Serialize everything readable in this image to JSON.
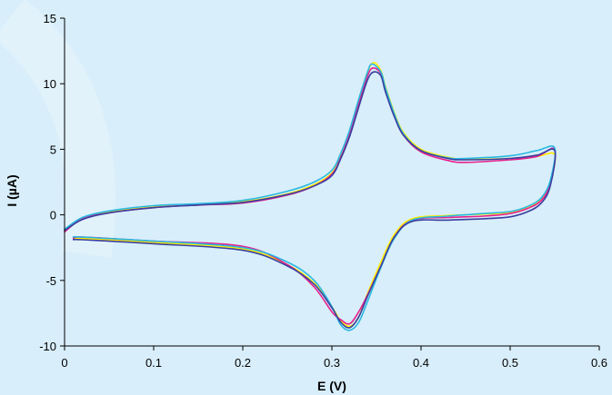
{
  "chart_data": {
    "type": "line",
    "title": "",
    "xlabel": "E (V)",
    "ylabel": "I (µA)",
    "xlim": [
      0,
      0.6
    ],
    "ylim": [
      -10,
      15
    ],
    "x_ticks": [
      0,
      0.1,
      0.2,
      0.3,
      0.4,
      0.5,
      0.6
    ],
    "x_tick_labels": [
      "0",
      "0.1",
      "0.2",
      "0.3",
      "0.4",
      "0.5",
      "0.6"
    ],
    "y_ticks": [
      -10,
      -5,
      0,
      5,
      10,
      15
    ],
    "y_tick_labels": [
      "-10",
      "-5",
      "0",
      "5",
      "10",
      "15"
    ],
    "grid": false,
    "legend": "none",
    "series": [
      {
        "color": "#ffee00",
        "forward": [
          [
            0.0,
            -1.2
          ],
          [
            0.02,
            -0.3
          ],
          [
            0.05,
            0.2
          ],
          [
            0.1,
            0.6
          ],
          [
            0.15,
            0.8
          ],
          [
            0.2,
            1.0
          ],
          [
            0.25,
            1.6
          ],
          [
            0.28,
            2.3
          ],
          [
            0.3,
            3.2
          ],
          [
            0.31,
            4.5
          ],
          [
            0.32,
            6.3
          ],
          [
            0.33,
            8.7
          ],
          [
            0.34,
            10.9
          ],
          [
            0.347,
            11.6
          ],
          [
            0.355,
            11.0
          ],
          [
            0.36,
            9.8
          ],
          [
            0.37,
            7.8
          ],
          [
            0.38,
            6.3
          ],
          [
            0.4,
            5.0
          ],
          [
            0.43,
            4.4
          ],
          [
            0.45,
            4.25
          ],
          [
            0.5,
            4.3
          ],
          [
            0.53,
            4.45
          ],
          [
            0.55,
            4.6
          ]
        ],
        "reverse": [
          [
            0.55,
            4.6
          ],
          [
            0.545,
            2.5
          ],
          [
            0.535,
            1.2
          ],
          [
            0.52,
            0.6
          ],
          [
            0.5,
            0.2
          ],
          [
            0.47,
            0.05
          ],
          [
            0.43,
            -0.05
          ],
          [
            0.39,
            -0.3
          ],
          [
            0.37,
            -1.5
          ],
          [
            0.355,
            -3.6
          ],
          [
            0.34,
            -6.0
          ],
          [
            0.33,
            -7.8
          ],
          [
            0.32,
            -8.5
          ],
          [
            0.31,
            -8.1
          ],
          [
            0.3,
            -7.0
          ],
          [
            0.28,
            -5.2
          ],
          [
            0.25,
            -3.8
          ],
          [
            0.2,
            -2.6
          ],
          [
            0.1,
            -2.1
          ],
          [
            0.02,
            -1.8
          ],
          [
            0.01,
            -1.8
          ]
        ]
      },
      {
        "color": "#e8208c",
        "forward": [
          [
            0.0,
            -1.3
          ],
          [
            0.02,
            -0.3
          ],
          [
            0.05,
            0.15
          ],
          [
            0.1,
            0.55
          ],
          [
            0.15,
            0.75
          ],
          [
            0.2,
            0.9
          ],
          [
            0.25,
            1.5
          ],
          [
            0.28,
            2.2
          ],
          [
            0.3,
            3.1
          ],
          [
            0.31,
            4.4
          ],
          [
            0.32,
            6.2
          ],
          [
            0.33,
            8.5
          ],
          [
            0.34,
            10.6
          ],
          [
            0.346,
            11.2
          ],
          [
            0.355,
            10.8
          ],
          [
            0.36,
            9.6
          ],
          [
            0.37,
            7.6
          ],
          [
            0.38,
            6.1
          ],
          [
            0.4,
            4.8
          ],
          [
            0.43,
            4.15
          ],
          [
            0.45,
            4.0
          ],
          [
            0.5,
            4.2
          ],
          [
            0.53,
            4.45
          ],
          [
            0.55,
            5.0
          ]
        ],
        "reverse": [
          [
            0.55,
            5.0
          ],
          [
            0.545,
            2.4
          ],
          [
            0.535,
            1.1
          ],
          [
            0.52,
            0.5
          ],
          [
            0.5,
            0.1
          ],
          [
            0.47,
            -0.1
          ],
          [
            0.43,
            -0.2
          ],
          [
            0.39,
            -0.4
          ],
          [
            0.37,
            -1.7
          ],
          [
            0.355,
            -3.9
          ],
          [
            0.34,
            -6.1
          ],
          [
            0.33,
            -7.4
          ],
          [
            0.32,
            -8.3
          ],
          [
            0.31,
            -8.0
          ],
          [
            0.3,
            -7.4
          ],
          [
            0.28,
            -5.5
          ],
          [
            0.25,
            -3.8
          ],
          [
            0.2,
            -2.4
          ],
          [
            0.1,
            -2.0
          ],
          [
            0.02,
            -1.7
          ],
          [
            0.01,
            -1.8
          ]
        ]
      },
      {
        "color": "#29b8e0",
        "forward": [
          [
            0.0,
            -1.1
          ],
          [
            0.02,
            -0.2
          ],
          [
            0.05,
            0.3
          ],
          [
            0.1,
            0.7
          ],
          [
            0.15,
            0.85
          ],
          [
            0.2,
            1.1
          ],
          [
            0.25,
            1.8
          ],
          [
            0.28,
            2.5
          ],
          [
            0.3,
            3.4
          ],
          [
            0.31,
            4.7
          ],
          [
            0.32,
            6.5
          ],
          [
            0.33,
            8.8
          ],
          [
            0.34,
            10.9
          ],
          [
            0.345,
            11.5
          ],
          [
            0.355,
            10.9
          ],
          [
            0.36,
            9.7
          ],
          [
            0.37,
            7.7
          ],
          [
            0.38,
            6.2
          ],
          [
            0.4,
            4.9
          ],
          [
            0.43,
            4.35
          ],
          [
            0.45,
            4.3
          ],
          [
            0.5,
            4.5
          ],
          [
            0.53,
            4.9
          ],
          [
            0.55,
            5.1
          ]
        ],
        "reverse": [
          [
            0.55,
            5.1
          ],
          [
            0.545,
            2.6
          ],
          [
            0.535,
            1.3
          ],
          [
            0.52,
            0.65
          ],
          [
            0.5,
            0.25
          ],
          [
            0.47,
            0.1
          ],
          [
            0.43,
            -0.1
          ],
          [
            0.39,
            -0.4
          ],
          [
            0.37,
            -1.8
          ],
          [
            0.355,
            -4.0
          ],
          [
            0.34,
            -6.6
          ],
          [
            0.33,
            -8.2
          ],
          [
            0.32,
            -8.8
          ],
          [
            0.31,
            -8.4
          ],
          [
            0.3,
            -7.0
          ],
          [
            0.28,
            -5.0
          ],
          [
            0.25,
            -3.6
          ],
          [
            0.2,
            -2.5
          ],
          [
            0.1,
            -2.0
          ],
          [
            0.02,
            -1.7
          ],
          [
            0.01,
            -1.7
          ]
        ]
      },
      {
        "color": "#3a3fa0",
        "forward": [
          [
            0.0,
            -1.2
          ],
          [
            0.02,
            -0.35
          ],
          [
            0.05,
            0.15
          ],
          [
            0.1,
            0.55
          ],
          [
            0.15,
            0.75
          ],
          [
            0.2,
            0.95
          ],
          [
            0.25,
            1.55
          ],
          [
            0.28,
            2.2
          ],
          [
            0.3,
            3.0
          ],
          [
            0.31,
            4.3
          ],
          [
            0.32,
            6.0
          ],
          [
            0.33,
            8.2
          ],
          [
            0.34,
            10.3
          ],
          [
            0.347,
            10.9
          ],
          [
            0.355,
            10.6
          ],
          [
            0.36,
            9.4
          ],
          [
            0.37,
            7.5
          ],
          [
            0.38,
            6.1
          ],
          [
            0.4,
            4.9
          ],
          [
            0.43,
            4.3
          ],
          [
            0.45,
            4.2
          ],
          [
            0.5,
            4.3
          ],
          [
            0.53,
            4.55
          ],
          [
            0.55,
            4.9
          ]
        ],
        "reverse": [
          [
            0.55,
            4.9
          ],
          [
            0.545,
            2.2
          ],
          [
            0.535,
            0.9
          ],
          [
            0.52,
            0.25
          ],
          [
            0.5,
            -0.15
          ],
          [
            0.47,
            -0.3
          ],
          [
            0.43,
            -0.4
          ],
          [
            0.39,
            -0.5
          ],
          [
            0.37,
            -1.7
          ],
          [
            0.355,
            -3.9
          ],
          [
            0.34,
            -6.2
          ],
          [
            0.33,
            -7.8
          ],
          [
            0.32,
            -8.6
          ],
          [
            0.31,
            -8.2
          ],
          [
            0.3,
            -7.1
          ],
          [
            0.28,
            -5.3
          ],
          [
            0.25,
            -3.9
          ],
          [
            0.2,
            -2.7
          ],
          [
            0.1,
            -2.2
          ],
          [
            0.02,
            -1.9
          ],
          [
            0.01,
            -1.9
          ]
        ]
      }
    ]
  }
}
